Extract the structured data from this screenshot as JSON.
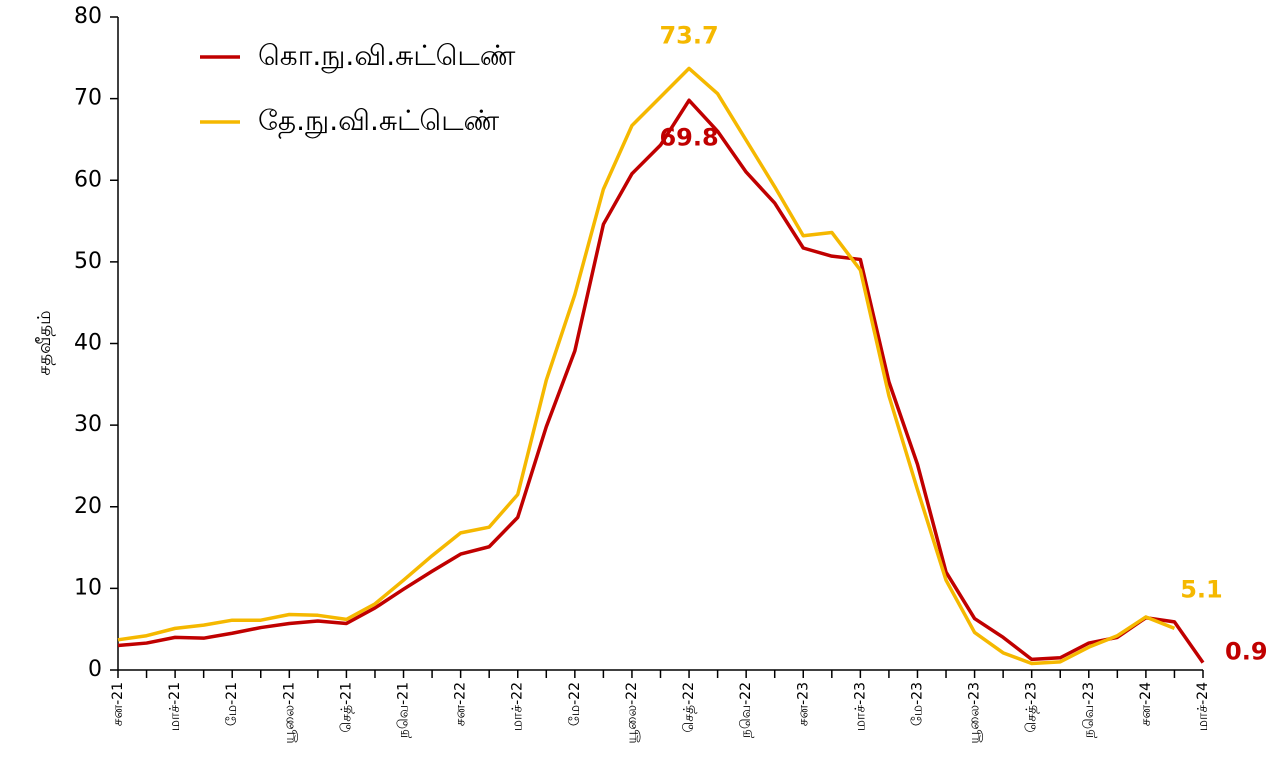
{
  "chart_data": {
    "type": "line",
    "y_label": "சதவீதம்",
    "categories": [
      "சன-21",
      null,
      "மாச்-21",
      null,
      "மே-21",
      null,
      "யூலை-21",
      null,
      "செத்-21",
      null,
      "நவெ-21",
      null,
      "சன-22",
      null,
      "மாச்-22",
      null,
      "மே-22",
      null,
      "யூலை-22",
      null,
      "செத்-22",
      null,
      "நவெ-22",
      null,
      "சன-23",
      null,
      "மாச்-23",
      null,
      "மே-23",
      null,
      "யூலை-23",
      null,
      "செத்-23",
      null,
      "நவெ-23",
      null,
      "சன-24",
      null,
      "மாச்-24"
    ],
    "series": [
      {
        "name": "கொ.நு.வி.சுட்டெண்",
        "color": "#c00000",
        "labeled": [
          20,
          38
        ],
        "values": [
          3.0,
          3.3,
          4.0,
          3.9,
          4.5,
          5.2,
          5.7,
          6.0,
          5.7,
          7.6,
          9.9,
          12.1,
          14.2,
          15.1,
          18.7,
          29.8,
          39.1,
          54.6,
          60.8,
          64.3,
          69.8,
          66.0,
          61.0,
          57.2,
          51.7,
          50.7,
          50.3,
          35.3,
          25.2,
          12.0,
          6.3,
          4.0,
          1.3,
          1.5,
          3.3,
          4.0,
          6.4,
          5.9,
          0.9
        ]
      },
      {
        "name": "தே.நு.வி.சுட்டெண்",
        "color": "#f5b800",
        "labeled": [
          20,
          37
        ],
        "values": [
          3.7,
          4.2,
          5.1,
          5.5,
          6.1,
          6.1,
          6.8,
          6.7,
          6.2,
          8.1,
          11.0,
          14.0,
          16.8,
          17.5,
          21.5,
          35.5,
          46.0,
          58.9,
          66.7,
          70.2,
          73.7,
          70.6,
          64.9,
          59.2,
          53.2,
          53.6,
          49.0,
          33.6,
          22.1,
          11.0,
          4.6,
          2.1,
          0.8,
          1.0,
          2.8,
          4.2,
          6.5,
          5.1,
          null
        ]
      }
    ],
    "ylim": [
      0,
      80
    ],
    "yticks": [
      0,
      10,
      20,
      30,
      40,
      50,
      60,
      70,
      80
    ],
    "grid": false
  }
}
